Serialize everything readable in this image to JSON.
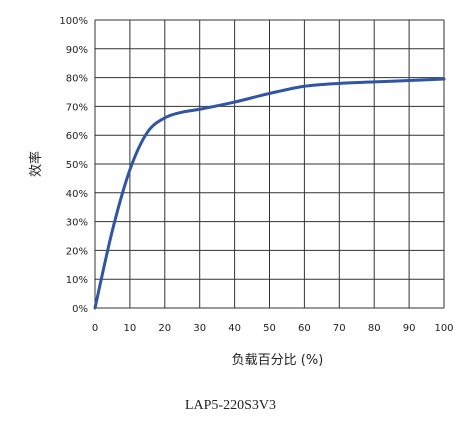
{
  "chart_data": {
    "type": "line",
    "x": [
      0,
      5,
      10,
      15,
      20,
      25,
      30,
      40,
      50,
      60,
      70,
      80,
      90,
      100
    ],
    "series": [
      {
        "values": [
          0,
          27,
          48,
          61,
          66,
          68,
          69,
          71.5,
          74.5,
          77,
          78,
          78.5,
          79,
          79.5
        ],
        "color": "#2f55a4"
      }
    ],
    "xlabel": "负载百分比 (%)",
    "ylabel": "效率",
    "xlim": [
      0,
      100
    ],
    "ylim": [
      0,
      100
    ],
    "x_ticks": [
      "0",
      "10",
      "20",
      "30",
      "40",
      "50",
      "60",
      "70",
      "80",
      "90",
      "100"
    ],
    "y_ticks": [
      "0%",
      "10%",
      "20%",
      "30%",
      "40%",
      "50%",
      "60%",
      "70%",
      "80%",
      "90%",
      "100%"
    ],
    "grid": true
  },
  "caption": "LAP5-220S3V3"
}
